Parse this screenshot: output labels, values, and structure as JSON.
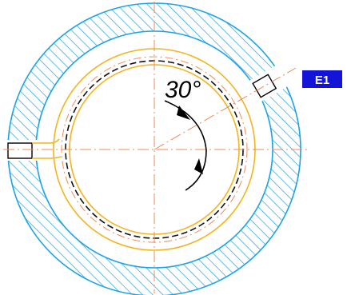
{
  "labels": {
    "angle": "30°",
    "tag": "E1"
  },
  "colors": {
    "outer_ring": "#1aa3e8",
    "hatch": "#1aa3e8",
    "groove": "#f5b31c",
    "centerline": "#f08a5a",
    "bore": "#111111",
    "tag_background": "#1414d8",
    "tag_text": "#ffffff"
  }
}
